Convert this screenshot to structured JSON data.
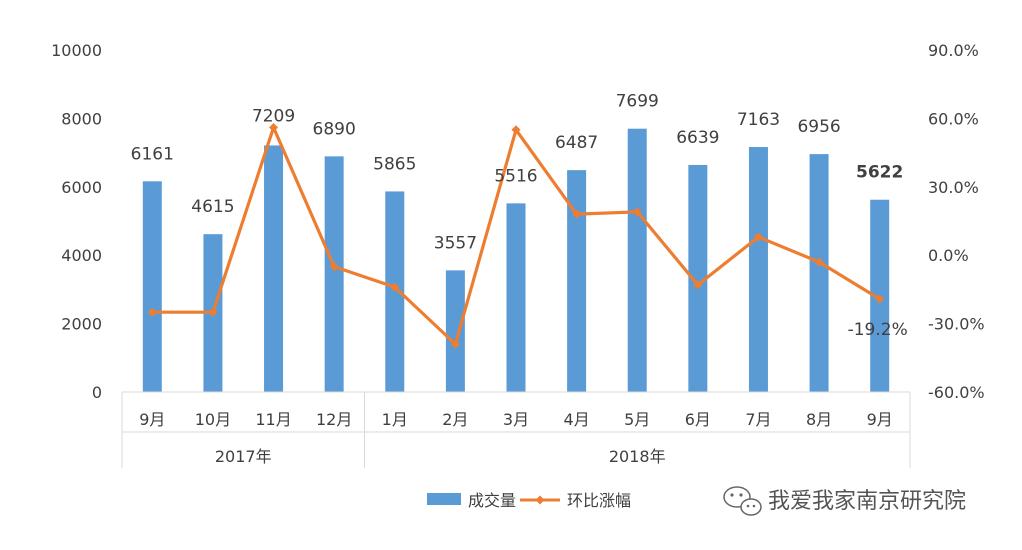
{
  "chart_data": {
    "type": "bar",
    "combo": true,
    "groups": [
      {
        "label": "2017年",
        "count": 4
      },
      {
        "label": "2018年",
        "count": 9
      }
    ],
    "categories": [
      "9月",
      "10月",
      "11月",
      "12月",
      "1月",
      "2月",
      "3月",
      "4月",
      "5月",
      "6月",
      "7月",
      "8月",
      "9月"
    ],
    "series": [
      {
        "name": "成交量",
        "type": "bar",
        "axis": "left",
        "color": "#5b9bd5",
        "values": [
          6161,
          4615,
          7209,
          6890,
          5865,
          3557,
          5516,
          6487,
          7699,
          6639,
          7163,
          6956,
          5622
        ],
        "data_labels": [
          "6161",
          "4615",
          "7209",
          "6890",
          "5865",
          "3557",
          "5516",
          "6487",
          "7699",
          "6639",
          "7163",
          "6956",
          "5622"
        ]
      },
      {
        "name": "环比涨幅",
        "type": "line",
        "axis": "right",
        "color": "#ed7d31",
        "values": [
          -25.0,
          -25.0,
          56.0,
          -5.0,
          -14.0,
          -39.0,
          55.0,
          18.0,
          19.0,
          -13.0,
          8.0,
          -3.0,
          -19.2
        ],
        "data_labels": [
          "",
          "",
          "",
          "",
          "",
          "",
          "",
          "",
          "",
          "",
          "",
          "",
          "-19.2%"
        ]
      }
    ],
    "y_left": {
      "min": 0,
      "max": 10000,
      "ticks": [
        "0",
        "2000",
        "4000",
        "6000",
        "8000",
        "10000"
      ]
    },
    "y_right": {
      "min": -60,
      "max": 90,
      "ticks": [
        "-60.0%",
        "-30.0%",
        "0.0%",
        "30.0%",
        "60.0%",
        "90.0%"
      ]
    },
    "grid": false,
    "legend_position": "bottom"
  },
  "watermark": {
    "text": "我爱我家南京研究院",
    "icon": "wechat-icon"
  }
}
